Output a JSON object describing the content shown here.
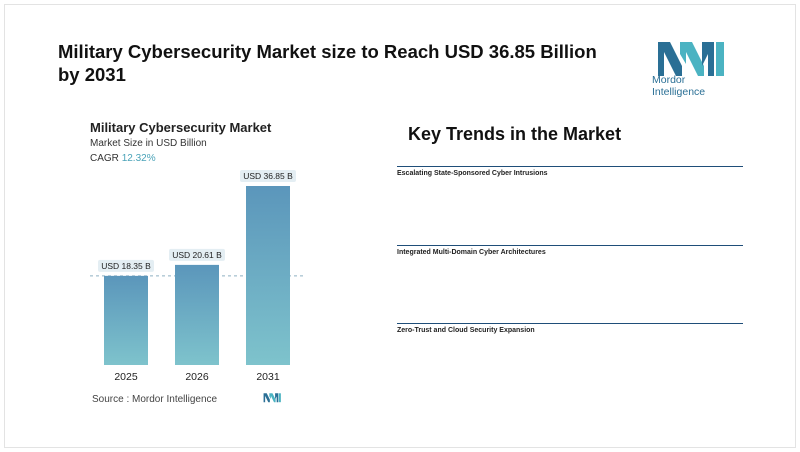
{
  "title": "Military Cybersecurity Market size to Reach USD 36.85 Billion by 2031",
  "logo": {
    "text": "Mordor Intelligence",
    "icon": "mordor-intelligence-logo"
  },
  "chart": {
    "title": "Military Cybersecurity Market",
    "subtitle": "Market Size in USD Billion",
    "cagr_label": "CAGR",
    "cagr_value": "12.32%",
    "source": "Source :  Mordor Intelligence"
  },
  "chart_data": {
    "type": "bar",
    "categories": [
      "2025",
      "2026",
      "2031"
    ],
    "values": [
      18.35,
      20.61,
      36.85
    ],
    "data_labels": [
      "USD 18.35 B",
      "USD 20.61 B",
      "USD 36.85 B"
    ],
    "title": "Military Cybersecurity Market",
    "ylabel": "Market Size in USD Billion",
    "ylim": [
      0,
      36.85
    ],
    "reference_line": 18.35,
    "grid": false,
    "colors": {
      "bar_top": "#5b96bb",
      "bar_bottom": "#7ec3cc",
      "label_bg": "#e4eef3",
      "ref_line": "#8fb0c2"
    }
  },
  "trends": {
    "title": "Key Trends in the Market",
    "items": [
      "Escalating State-Sponsored Cyber Intrusions",
      "Integrated Multi-Domain Cyber Architectures",
      "Zero-Trust and Cloud Security Expansion"
    ]
  }
}
